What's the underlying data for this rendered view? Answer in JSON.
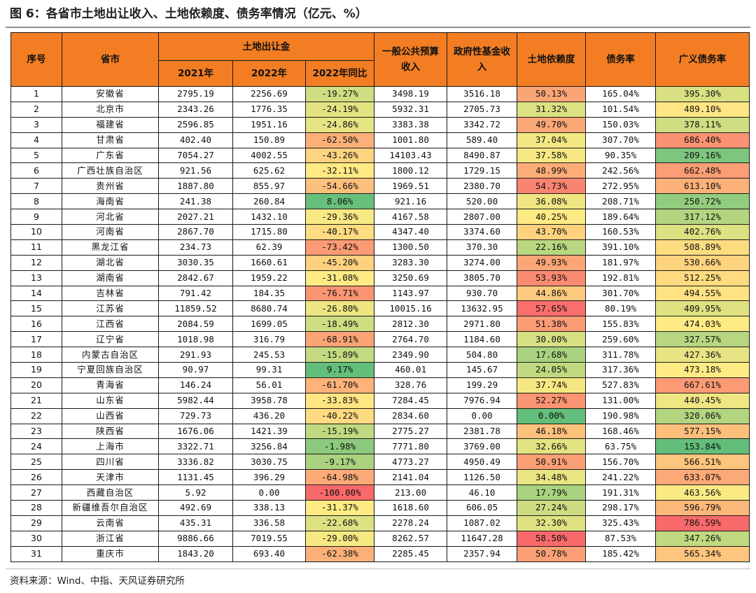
{
  "title": "图 6：各省市土地出让收入、土地依赖度、债务率情况（亿元、%）",
  "source": "资料来源：Wind、中指、天风证券研究所",
  "headers": {
    "index": "序号",
    "province": "省市",
    "land_group": "土地出让金",
    "y2021": "2021年",
    "y2022": "2022年",
    "yoy": "2022年同比",
    "budget": "一般公共预算收入",
    "fund": "政府性基金收入",
    "dependence": "土地依赖度",
    "debt": "债务率",
    "broad_debt": "广义债务率"
  },
  "rows": [
    {
      "idx": "1",
      "province": "安徽省",
      "y2021": "2795.19",
      "y2022": "2256.69",
      "yoy": "-19.27%",
      "budget": "3498.19",
      "fund": "3516.18",
      "dep": "50.13%",
      "debt": "165.04%",
      "broad": "395.30%"
    },
    {
      "idx": "2",
      "province": "北京市",
      "y2021": "2343.26",
      "y2022": "1776.35",
      "yoy": "-24.19%",
      "budget": "5932.31",
      "fund": "2705.73",
      "dep": "31.32%",
      "debt": "101.54%",
      "broad": "489.10%"
    },
    {
      "idx": "3",
      "province": "福建省",
      "y2021": "2596.85",
      "y2022": "1951.16",
      "yoy": "-24.86%",
      "budget": "3383.38",
      "fund": "3342.72",
      "dep": "49.70%",
      "debt": "150.03%",
      "broad": "378.11%"
    },
    {
      "idx": "4",
      "province": "甘肃省",
      "y2021": "402.40",
      "y2022": "150.89",
      "yoy": "-62.50%",
      "budget": "1001.80",
      "fund": "589.40",
      "dep": "37.04%",
      "debt": "307.70%",
      "broad": "686.40%"
    },
    {
      "idx": "5",
      "province": "广东省",
      "y2021": "7054.27",
      "y2022": "4002.55",
      "yoy": "-43.26%",
      "budget": "14103.43",
      "fund": "8490.87",
      "dep": "37.58%",
      "debt": "90.35%",
      "broad": "209.16%"
    },
    {
      "idx": "6",
      "province": "广西壮族自治区",
      "y2021": "921.56",
      "y2022": "625.62",
      "yoy": "-32.11%",
      "budget": "1800.12",
      "fund": "1729.15",
      "dep": "48.99%",
      "debt": "242.56%",
      "broad": "662.48%"
    },
    {
      "idx": "7",
      "province": "贵州省",
      "y2021": "1887.80",
      "y2022": "855.97",
      "yoy": "-54.66%",
      "budget": "1969.51",
      "fund": "2380.70",
      "dep": "54.73%",
      "debt": "272.95%",
      "broad": "613.10%"
    },
    {
      "idx": "8",
      "province": "海南省",
      "y2021": "241.38",
      "y2022": "260.84",
      "yoy": "8.06%",
      "budget": "921.16",
      "fund": "520.00",
      "dep": "36.08%",
      "debt": "208.71%",
      "broad": "250.72%"
    },
    {
      "idx": "9",
      "province": "河北省",
      "y2021": "2027.21",
      "y2022": "1432.10",
      "yoy": "-29.36%",
      "budget": "4167.58",
      "fund": "2807.00",
      "dep": "40.25%",
      "debt": "189.64%",
      "broad": "317.12%"
    },
    {
      "idx": "10",
      "province": "河南省",
      "y2021": "2867.70",
      "y2022": "1715.80",
      "yoy": "-40.17%",
      "budget": "4347.40",
      "fund": "3374.60",
      "dep": "43.70%",
      "debt": "160.53%",
      "broad": "402.76%"
    },
    {
      "idx": "11",
      "province": "黑龙江省",
      "y2021": "234.73",
      "y2022": "62.39",
      "yoy": "-73.42%",
      "budget": "1300.50",
      "fund": "370.30",
      "dep": "22.16%",
      "debt": "391.10%",
      "broad": "508.89%"
    },
    {
      "idx": "12",
      "province": "湖北省",
      "y2021": "3030.35",
      "y2022": "1660.61",
      "yoy": "-45.20%",
      "budget": "3283.30",
      "fund": "3274.00",
      "dep": "49.93%",
      "debt": "181.97%",
      "broad": "530.66%"
    },
    {
      "idx": "13",
      "province": "湖南省",
      "y2021": "2842.67",
      "y2022": "1959.22",
      "yoy": "-31.08%",
      "budget": "3250.69",
      "fund": "3805.70",
      "dep": "53.93%",
      "debt": "192.81%",
      "broad": "512.25%"
    },
    {
      "idx": "14",
      "province": "吉林省",
      "y2021": "791.42",
      "y2022": "184.35",
      "yoy": "-76.71%",
      "budget": "1143.97",
      "fund": "930.70",
      "dep": "44.86%",
      "debt": "301.70%",
      "broad": "494.55%"
    },
    {
      "idx": "15",
      "province": "江苏省",
      "y2021": "11859.52",
      "y2022": "8680.74",
      "yoy": "-26.80%",
      "budget": "10015.16",
      "fund": "13632.95",
      "dep": "57.65%",
      "debt": "80.19%",
      "broad": "409.95%"
    },
    {
      "idx": "16",
      "province": "江西省",
      "y2021": "2084.59",
      "y2022": "1699.05",
      "yoy": "-18.49%",
      "budget": "2812.30",
      "fund": "2971.80",
      "dep": "51.38%",
      "debt": "155.83%",
      "broad": "474.03%"
    },
    {
      "idx": "17",
      "province": "辽宁省",
      "y2021": "1018.98",
      "y2022": "316.79",
      "yoy": "-68.91%",
      "budget": "2764.70",
      "fund": "1184.60",
      "dep": "30.00%",
      "debt": "259.60%",
      "broad": "327.57%"
    },
    {
      "idx": "18",
      "province": "内蒙古自治区",
      "y2021": "291.93",
      "y2022": "245.53",
      "yoy": "-15.89%",
      "budget": "2349.90",
      "fund": "504.80",
      "dep": "17.68%",
      "debt": "311.78%",
      "broad": "427.36%"
    },
    {
      "idx": "19",
      "province": "宁夏回族自治区",
      "y2021": "90.97",
      "y2022": "99.31",
      "yoy": "9.17%",
      "budget": "460.01",
      "fund": "145.67",
      "dep": "24.05%",
      "debt": "317.36%",
      "broad": "473.18%"
    },
    {
      "idx": "20",
      "province": "青海省",
      "y2021": "146.24",
      "y2022": "56.01",
      "yoy": "-61.70%",
      "budget": "328.76",
      "fund": "199.29",
      "dep": "37.74%",
      "debt": "527.83%",
      "broad": "667.61%"
    },
    {
      "idx": "21",
      "province": "山东省",
      "y2021": "5982.44",
      "y2022": "3958.78",
      "yoy": "-33.83%",
      "budget": "7284.45",
      "fund": "7976.94",
      "dep": "52.27%",
      "debt": "131.00%",
      "broad": "440.45%"
    },
    {
      "idx": "22",
      "province": "山西省",
      "y2021": "729.73",
      "y2022": "436.20",
      "yoy": "-40.22%",
      "budget": "2834.60",
      "fund": "0.00",
      "dep": "0.00%",
      "debt": "190.98%",
      "broad": "320.06%"
    },
    {
      "idx": "23",
      "province": "陕西省",
      "y2021": "1676.06",
      "y2022": "1421.39",
      "yoy": "-15.19%",
      "budget": "2775.27",
      "fund": "2381.78",
      "dep": "46.18%",
      "debt": "168.46%",
      "broad": "577.15%"
    },
    {
      "idx": "24",
      "province": "上海市",
      "y2021": "3322.71",
      "y2022": "3256.84",
      "yoy": "-1.98%",
      "budget": "7771.80",
      "fund": "3769.00",
      "dep": "32.66%",
      "debt": "63.75%",
      "broad": "153.84%"
    },
    {
      "idx": "25",
      "province": "四川省",
      "y2021": "3336.82",
      "y2022": "3030.75",
      "yoy": "-9.17%",
      "budget": "4773.27",
      "fund": "4950.49",
      "dep": "50.91%",
      "debt": "156.70%",
      "broad": "566.51%"
    },
    {
      "idx": "26",
      "province": "天津市",
      "y2021": "1131.45",
      "y2022": "396.29",
      "yoy": "-64.98%",
      "budget": "2141.04",
      "fund": "1126.50",
      "dep": "34.48%",
      "debt": "241.22%",
      "broad": "633.07%"
    },
    {
      "idx": "27",
      "province": "西藏自治区",
      "y2021": "5.92",
      "y2022": "0.00",
      "yoy": "-100.00%",
      "budget": "213.00",
      "fund": "46.10",
      "dep": "17.79%",
      "debt": "191.31%",
      "broad": "463.56%"
    },
    {
      "idx": "28",
      "province": "新疆维吾尔自治区",
      "y2021": "492.69",
      "y2022": "338.13",
      "yoy": "-31.37%",
      "budget": "1618.60",
      "fund": "606.05",
      "dep": "27.24%",
      "debt": "298.17%",
      "broad": "596.79%"
    },
    {
      "idx": "29",
      "province": "云南省",
      "y2021": "435.31",
      "y2022": "336.58",
      "yoy": "-22.68%",
      "budget": "2278.24",
      "fund": "1087.02",
      "dep": "32.30%",
      "debt": "325.43%",
      "broad": "786.59%"
    },
    {
      "idx": "30",
      "province": "浙江省",
      "y2021": "9886.66",
      "y2022": "7019.55",
      "yoy": "-29.00%",
      "budget": "8262.57",
      "fund": "11647.28",
      "dep": "58.50%",
      "debt": "87.53%",
      "broad": "347.26%"
    },
    {
      "idx": "31",
      "province": "重庆市",
      "y2021": "1843.20",
      "y2022": "693.40",
      "yoy": "-62.38%",
      "budget": "2285.45",
      "fund": "2357.94",
      "dep": "50.78%",
      "debt": "185.42%",
      "broad": "565.34%"
    }
  ]
}
